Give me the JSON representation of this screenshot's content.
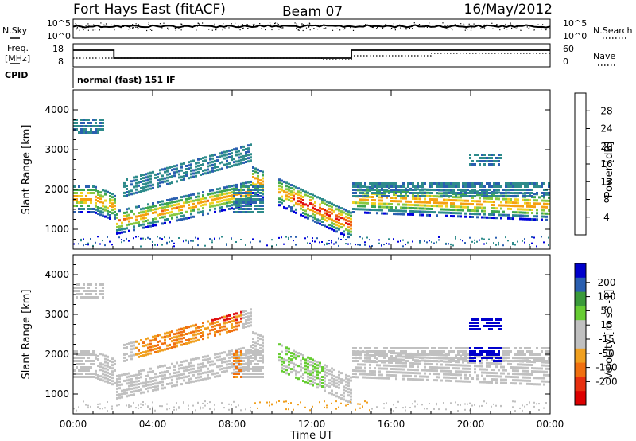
{
  "header": {
    "station": "Fort Hays East (fitACF)",
    "beam": "Beam 07",
    "date": "16/May/2012"
  },
  "noise_panel": {
    "left_label": "N.Sky",
    "left_ticks": [
      "10^5",
      "10^0"
    ],
    "right_label": "N.Search",
    "right_ticks": [
      "10^5",
      "10^0"
    ]
  },
  "freq_panel": {
    "left_label_1": "Freq.",
    "left_label_2": "[MHz]",
    "left_ticks": [
      "18",
      "8"
    ],
    "right_label": "Nave",
    "right_ticks": [
      "60",
      "0"
    ]
  },
  "cpid_panel": {
    "label": "CPID",
    "text": "normal (fast) 151 IF"
  },
  "colors": {
    "power_scale": [
      "#0000dd",
      "#2a5fb0",
      "#2e8b8b",
      "#3ea650",
      "#88c840",
      "#f0d020",
      "#f5a010",
      "#f06010",
      "#e01010"
    ],
    "velocity_scale": [
      "#0000cc",
      "#2a5fb0",
      "#3a9a3a",
      "#66cc33",
      "#c0c0c0",
      "#c0c0c0",
      "#f0a020",
      "#f07010",
      "#e83010",
      "#dd0000"
    ]
  },
  "chart_data": [
    {
      "type": "heatmap",
      "name": "power",
      "ylabel": "Slant Range [km]",
      "yticks": [
        "1000",
        "2000",
        "3000",
        "4000"
      ],
      "ylim": [
        500,
        4500
      ],
      "xlim_hours": [
        0,
        24
      ],
      "colorbar_label": "Power [dB]",
      "colorbar_ticks": [
        "4",
        "8",
        "12",
        "16",
        "20",
        "24",
        "28"
      ],
      "colorbar_range": [
        0,
        32
      ]
    },
    {
      "type": "heatmap",
      "name": "velocity",
      "ylabel": "Slant Range [km]",
      "yticks": [
        "1000",
        "2000",
        "3000",
        "4000"
      ],
      "ylim": [
        500,
        4500
      ],
      "xlim_hours": [
        0,
        24
      ],
      "colorbar_label": "Velocity [m s^-1]",
      "colorbar_ticks": [
        "200",
        "100",
        "50",
        "15",
        "-15",
        "-50",
        "-100",
        "-200"
      ]
    }
  ],
  "xaxis": {
    "label": "Time UT",
    "ticks": [
      "00:00",
      "04:00",
      "08:00",
      "12:00",
      "16:00",
      "20:00",
      "00:00"
    ]
  }
}
